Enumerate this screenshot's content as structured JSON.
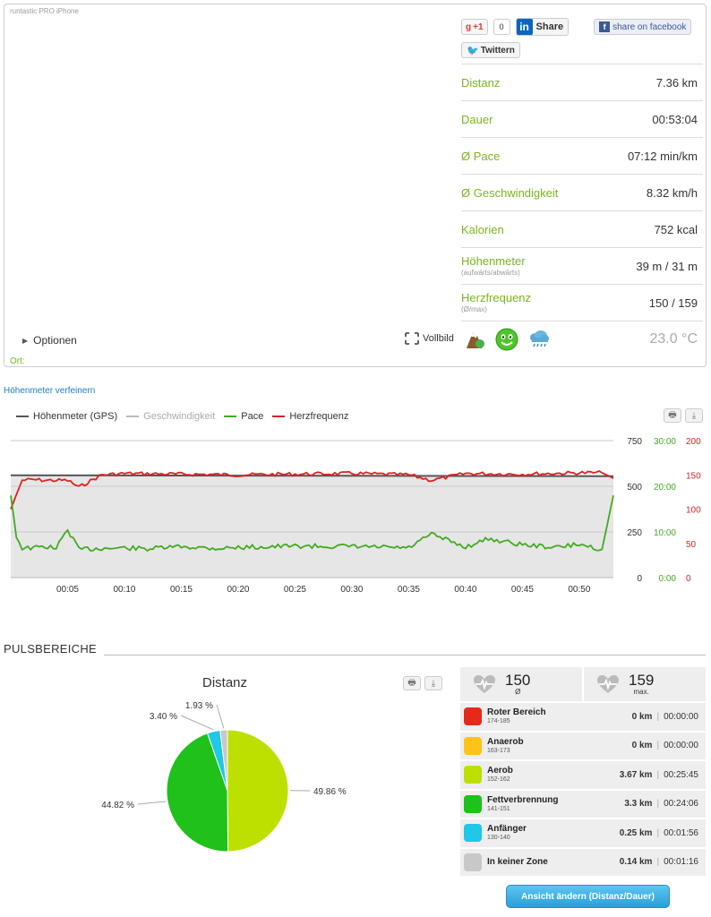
{
  "card": {
    "source": "runtastic PRO iPhone",
    "options_label": "Optionen",
    "location_label": "Ort:",
    "fullscreen_label": "Vollbild"
  },
  "share": {
    "gplus_label": "+1",
    "gplus_count": "0",
    "linkedin_label": "Share",
    "facebook_label": "share on facebook",
    "twitter_label": "Twittern"
  },
  "stats": [
    {
      "label": "Distanz",
      "value": "7.36 km"
    },
    {
      "label": "Dauer",
      "value": "00:53:04"
    },
    {
      "label": "Ø Pace",
      "value": "07:12 min/km"
    },
    {
      "label": "Ø Geschwindigkeit",
      "value": "8.32 km/h"
    },
    {
      "label": "Kalorien",
      "value": "752 kcal"
    },
    {
      "label": "Höhenmeter",
      "sub": "(aufwärts/abwärts)",
      "value": "39 m / 31 m"
    },
    {
      "label": "Herzfrequenz",
      "sub": "(Ø/max)",
      "value": "150 / 159"
    }
  ],
  "weather": {
    "temperature": "23.0 °C",
    "icons": [
      "terrain-icon",
      "smiley-icon",
      "rain-cloud-icon"
    ]
  },
  "elevation_link": "Höhenmeter verfeinern",
  "colors": {
    "green": "#7ab51d",
    "red": "#e02020",
    "grey": "#555555",
    "light_grey": "#bbbbbb"
  },
  "chart_data": [
    {
      "type": "line",
      "legend": [
        "Höhenmeter (GPS)",
        "Geschwindigkeit",
        "Pace",
        "Herzfrequenz"
      ],
      "legend_colors": [
        "#555555",
        "#bbbbbb",
        "#44aa22",
        "#dd2222"
      ],
      "x_ticks": [
        "00:05",
        "00:10",
        "00:15",
        "00:20",
        "00:25",
        "00:30",
        "00:35",
        "00:40",
        "00:45",
        "00:50"
      ],
      "y_axes": [
        {
          "name": "Höhenmeter",
          "ticks": [
            "750",
            "500",
            "250",
            "0"
          ],
          "color": "#333333"
        },
        {
          "name": "Pace",
          "ticks": [
            "30:00",
            "20:00",
            "10:00",
            "0:00"
          ],
          "color": "#44aa22"
        },
        {
          "name": "Herzfrequenz",
          "ticks": [
            "200",
            "150",
            "100",
            "50",
            "0"
          ],
          "color": "#dd2222"
        }
      ],
      "xlim_min": [
        0,
        53
      ],
      "series": [
        {
          "name": "Höhenmeter (GPS)",
          "approx_value": 560
        },
        {
          "name": "Herzfrequenz",
          "x_min": [
            0,
            1,
            2,
            3,
            5,
            6,
            8,
            10,
            15,
            20,
            25,
            30,
            35,
            37,
            40,
            45,
            50,
            52,
            53
          ],
          "values_bpm": [
            100,
            142,
            143,
            142,
            142,
            132,
            150,
            152,
            151,
            150,
            151,
            152,
            150,
            142,
            152,
            151,
            153,
            153,
            145
          ]
        },
        {
          "name": "Pace",
          "x_min": [
            0,
            0.5,
            1,
            2,
            3,
            4,
            5,
            6,
            8,
            10,
            12,
            15,
            18,
            20,
            25,
            30,
            35,
            37,
            40,
            42,
            45,
            48,
            50,
            52,
            53
          ],
          "values_min": [
            18,
            9,
            6.5,
            6.5,
            6.8,
            6.5,
            10.5,
            6.2,
            6.4,
            6.5,
            6.3,
            6.8,
            6.4,
            6.6,
            6.9,
            6.8,
            6.5,
            9.5,
            6.7,
            8.5,
            7.2,
            6.6,
            7.3,
            6.2,
            18
          ]
        }
      ]
    },
    {
      "type": "pie",
      "title": "Distanz",
      "slices": [
        {
          "label": "49.86 %",
          "value": 49.86,
          "color": "#bde000"
        },
        {
          "label": "44.82 %",
          "value": 44.82,
          "color": "#1fc11a"
        },
        {
          "label": "3.40 %",
          "value": 3.4,
          "color": "#1ec8e6"
        },
        {
          "label": "1.93 %",
          "value": 1.93,
          "color": "#c8c8c8"
        }
      ]
    }
  ],
  "pulse": {
    "heading": "PULSBEREICHE",
    "avg": {
      "value": "150",
      "label": "Ø"
    },
    "max": {
      "value": "159",
      "label": "max."
    },
    "zones": [
      {
        "name": "Roter Bereich",
        "range": "174-185",
        "dist": "0 km",
        "time": "00:00:00",
        "color": "#e52a1b"
      },
      {
        "name": "Anaerob",
        "range": "163-173",
        "dist": "0 km",
        "time": "00:00:00",
        "color": "#ffc21a"
      },
      {
        "name": "Aerob",
        "range": "152-162",
        "dist": "3.67 km",
        "time": "00:25:45",
        "color": "#bde000"
      },
      {
        "name": "Fettverbrennung",
        "range": "141-151",
        "dist": "3.3 km",
        "time": "00:24:06",
        "color": "#1fc11a"
      },
      {
        "name": "Anfänger",
        "range": "130-140",
        "dist": "0.25 km",
        "time": "00:01:56",
        "color": "#1ec8e6"
      },
      {
        "name": "In keiner Zone",
        "range": "",
        "dist": "0.14 km",
        "time": "00:01:16",
        "color": "#c8c8c8"
      }
    ],
    "change_button": "Ansicht ändern (Distanz/Dauer)"
  }
}
